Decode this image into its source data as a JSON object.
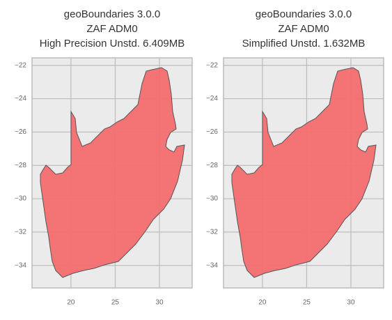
{
  "chart_data": [
    {
      "type": "map",
      "title_lines": [
        "geoBoundaries 3.0.0",
        "ZAF ADM0",
        "High Precision Unstd. 6.409MB"
      ],
      "fill": "#f46e71",
      "edge": "#555555",
      "grid": true,
      "xlim": [
        15.6,
        33.7
      ],
      "ylim": [
        -35.35,
        -21.55
      ],
      "xticks": [
        20,
        25,
        30
      ],
      "yticks": [
        {
          "value": -22,
          "label": "−22"
        },
        {
          "value": -24,
          "label": "−24"
        },
        {
          "value": -26,
          "label": "−26"
        },
        {
          "value": -28,
          "label": "−28"
        },
        {
          "value": -30,
          "label": "−30"
        },
        {
          "value": -32,
          "label": "−32"
        },
        {
          "value": -34,
          "label": "−34"
        }
      ]
    },
    {
      "type": "map",
      "title_lines": [
        "geoBoundaries 3.0.0",
        "ZAF ADM0",
        "Simplified Unstd. 1.632MB"
      ],
      "fill": "#f46e71",
      "edge": "#555555",
      "grid": true,
      "xlim": [
        15.6,
        33.7
      ],
      "ylim": [
        -35.35,
        -21.55
      ],
      "xticks": [
        20,
        25,
        30
      ],
      "yticks": [
        {
          "value": -22,
          "label": "−22"
        },
        {
          "value": -24,
          "label": "−24"
        },
        {
          "value": -26,
          "label": "−26"
        },
        {
          "value": -28,
          "label": "−28"
        },
        {
          "value": -30,
          "label": "−30"
        },
        {
          "value": -32,
          "label": "−32"
        },
        {
          "value": -34,
          "label": "−34"
        }
      ]
    }
  ]
}
